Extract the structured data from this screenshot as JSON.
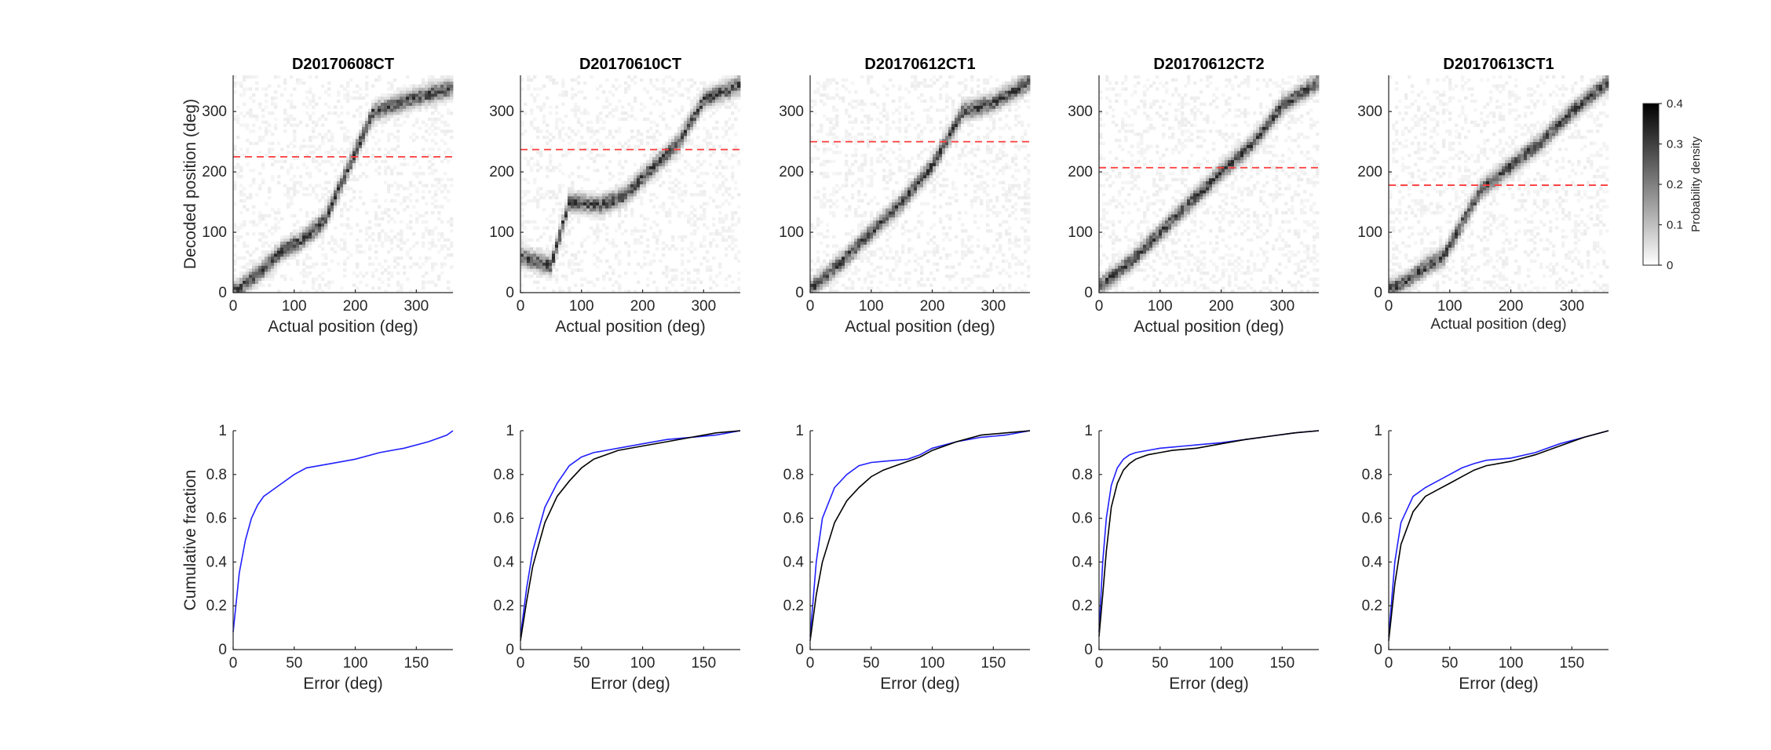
{
  "figure": {
    "colorbar": {
      "label": "Probability density",
      "range": [
        0,
        0.4
      ],
      "ticks": [
        "0",
        "0.1",
        "0.2",
        "0.3",
        "0.4"
      ],
      "colormap": "white-to-black"
    },
    "colors": {
      "threshold_line": "#ff3b3b",
      "decoded_curve": "#2020ff",
      "shuffle_curve": "#000000",
      "axis": "#262626"
    }
  },
  "chart_data": [
    {
      "type": "heatmap",
      "title": "D20170608CT",
      "xlabel": "Actual position (deg)",
      "ylabel": "Decoded position (deg)",
      "xlim": [
        0,
        360
      ],
      "ylim": [
        0,
        360
      ],
      "xticks": [
        "0",
        "100",
        "200",
        "300"
      ],
      "yticks": [
        "0",
        "100",
        "200",
        "300"
      ],
      "threshold_y": 225,
      "ridge": [
        [
          0,
          0
        ],
        [
          40,
          30
        ],
        [
          80,
          70
        ],
        [
          110,
          85
        ],
        [
          150,
          120
        ],
        [
          190,
          210
        ],
        [
          230,
          300
        ],
        [
          290,
          320
        ],
        [
          360,
          340
        ]
      ]
    },
    {
      "type": "heatmap",
      "title": "D20170610CT",
      "xlabel": "Actual position (deg)",
      "ylabel": "",
      "xlim": [
        0,
        360
      ],
      "ylim": [
        0,
        360
      ],
      "xticks": [
        "0",
        "100",
        "200",
        "300"
      ],
      "yticks": [
        "0",
        "100",
        "200",
        "300"
      ],
      "threshold_y": 237,
      "ridge": [
        [
          0,
          60
        ],
        [
          50,
          45
        ],
        [
          80,
          150
        ],
        [
          130,
          145
        ],
        [
          170,
          160
        ],
        [
          220,
          210
        ],
        [
          260,
          250
        ],
        [
          300,
          320
        ],
        [
          360,
          345
        ]
      ]
    },
    {
      "type": "heatmap",
      "title": "D20170612CT1",
      "xlabel": "Actual position (deg)",
      "ylabel": "",
      "xlim": [
        0,
        360
      ],
      "ylim": [
        0,
        360
      ],
      "xticks": [
        "0",
        "100",
        "200",
        "300"
      ],
      "yticks": [
        "0",
        "100",
        "200",
        "300"
      ],
      "threshold_y": 250,
      "ridge": [
        [
          0,
          5
        ],
        [
          50,
          50
        ],
        [
          100,
          100
        ],
        [
          150,
          150
        ],
        [
          200,
          210
        ],
        [
          250,
          300
        ],
        [
          300,
          315
        ],
        [
          360,
          350
        ]
      ]
    },
    {
      "type": "heatmap",
      "title": "D20170612CT2",
      "xlabel": "Actual position (deg)",
      "ylabel": "",
      "xlim": [
        0,
        360
      ],
      "ylim": [
        0,
        360
      ],
      "xticks": [
        "0",
        "100",
        "200",
        "300"
      ],
      "yticks": [
        "0",
        "100",
        "200",
        "300"
      ],
      "threshold_y": 207,
      "ridge": [
        [
          0,
          10
        ],
        [
          50,
          50
        ],
        [
          100,
          100
        ],
        [
          150,
          150
        ],
        [
          200,
          200
        ],
        [
          250,
          245
        ],
        [
          300,
          310
        ],
        [
          360,
          350
        ]
      ]
    },
    {
      "type": "heatmap",
      "title": "D20170613CT1",
      "xlabel": "Actual position (deg)",
      "ylabel": "",
      "xlim": [
        0,
        360
      ],
      "ylim": [
        0,
        360
      ],
      "xticks": [
        "0",
        "100",
        "200",
        "300"
      ],
      "yticks": [
        "0",
        "100",
        "200",
        "300"
      ],
      "threshold_y": 178,
      "ridge": [
        [
          0,
          5
        ],
        [
          30,
          20
        ],
        [
          70,
          50
        ],
        [
          90,
          60
        ],
        [
          150,
          170
        ],
        [
          200,
          210
        ],
        [
          250,
          250
        ],
        [
          300,
          300
        ],
        [
          360,
          350
        ]
      ]
    },
    {
      "type": "line",
      "xlabel": "Error (deg)",
      "ylabel": "Cumulative fraction",
      "xlim": [
        0,
        180
      ],
      "ylim": [
        0,
        1
      ],
      "xticks": [
        "0",
        "50",
        "100",
        "150"
      ],
      "yticks": [
        "0",
        "0.2",
        "0.4",
        "0.6",
        "0.8",
        "1"
      ],
      "series": [
        {
          "color": "#2020ff",
          "x": [
            0,
            5,
            10,
            15,
            20,
            25,
            30,
            40,
            50,
            60,
            80,
            100,
            120,
            140,
            160,
            175,
            180
          ],
          "y": [
            0.08,
            0.35,
            0.5,
            0.6,
            0.66,
            0.7,
            0.72,
            0.76,
            0.8,
            0.83,
            0.85,
            0.87,
            0.9,
            0.92,
            0.95,
            0.98,
            1.0
          ]
        }
      ]
    },
    {
      "type": "line",
      "xlabel": "Error (deg)",
      "ylabel": "",
      "xlim": [
        0,
        180
      ],
      "ylim": [
        0,
        1
      ],
      "xticks": [
        "0",
        "50",
        "100",
        "150"
      ],
      "yticks": [
        "0",
        "0.2",
        "0.4",
        "0.6",
        "0.8",
        "1"
      ],
      "series": [
        {
          "color": "#2020ff",
          "x": [
            0,
            5,
            10,
            20,
            30,
            40,
            50,
            60,
            70,
            80,
            100,
            120,
            140,
            160,
            180
          ],
          "y": [
            0.06,
            0.28,
            0.45,
            0.65,
            0.76,
            0.84,
            0.88,
            0.9,
            0.91,
            0.92,
            0.94,
            0.96,
            0.97,
            0.98,
            1.0
          ]
        },
        {
          "color": "#000000",
          "x": [
            0,
            5,
            10,
            20,
            30,
            40,
            50,
            60,
            70,
            80,
            100,
            120,
            140,
            160,
            180
          ],
          "y": [
            0.04,
            0.22,
            0.38,
            0.58,
            0.7,
            0.77,
            0.83,
            0.87,
            0.89,
            0.91,
            0.93,
            0.95,
            0.97,
            0.99,
            1.0
          ]
        }
      ]
    },
    {
      "type": "line",
      "xlabel": "Error (deg)",
      "ylabel": "",
      "xlim": [
        0,
        180
      ],
      "ylim": [
        0,
        1
      ],
      "xticks": [
        "0",
        "50",
        "100",
        "150"
      ],
      "yticks": [
        "0",
        "0.2",
        "0.4",
        "0.6",
        "0.8",
        "1"
      ],
      "series": [
        {
          "color": "#2020ff",
          "x": [
            0,
            5,
            10,
            20,
            30,
            40,
            50,
            60,
            70,
            80,
            90,
            100,
            120,
            140,
            160,
            180
          ],
          "y": [
            0.06,
            0.4,
            0.6,
            0.74,
            0.8,
            0.84,
            0.855,
            0.86,
            0.865,
            0.87,
            0.89,
            0.92,
            0.95,
            0.97,
            0.98,
            1.0
          ]
        },
        {
          "color": "#000000",
          "x": [
            0,
            5,
            10,
            20,
            30,
            40,
            50,
            60,
            70,
            80,
            90,
            100,
            120,
            140,
            160,
            180
          ],
          "y": [
            0.04,
            0.25,
            0.4,
            0.58,
            0.68,
            0.74,
            0.79,
            0.82,
            0.84,
            0.86,
            0.88,
            0.91,
            0.95,
            0.98,
            0.99,
            1.0
          ]
        }
      ]
    },
    {
      "type": "line",
      "xlabel": "Error (deg)",
      "ylabel": "",
      "xlim": [
        0,
        180
      ],
      "ylim": [
        0,
        1
      ],
      "xticks": [
        "0",
        "50",
        "100",
        "150"
      ],
      "yticks": [
        "0",
        "0.2",
        "0.4",
        "0.6",
        "0.8",
        "1"
      ],
      "series": [
        {
          "color": "#2020ff",
          "x": [
            0,
            3,
            6,
            10,
            15,
            20,
            25,
            30,
            40,
            50,
            60,
            70,
            80,
            100,
            120,
            140,
            160,
            180
          ],
          "y": [
            0.08,
            0.4,
            0.6,
            0.75,
            0.83,
            0.87,
            0.89,
            0.9,
            0.91,
            0.92,
            0.925,
            0.93,
            0.935,
            0.945,
            0.96,
            0.975,
            0.99,
            1.0
          ]
        },
        {
          "color": "#000000",
          "x": [
            0,
            3,
            6,
            10,
            15,
            20,
            25,
            30,
            40,
            50,
            60,
            70,
            80,
            100,
            120,
            140,
            160,
            180
          ],
          "y": [
            0.06,
            0.25,
            0.45,
            0.65,
            0.76,
            0.82,
            0.85,
            0.87,
            0.89,
            0.9,
            0.91,
            0.915,
            0.92,
            0.94,
            0.96,
            0.975,
            0.99,
            1.0
          ]
        }
      ]
    },
    {
      "type": "line",
      "xlabel": "Error (deg)",
      "ylabel": "",
      "xlim": [
        0,
        180
      ],
      "ylim": [
        0,
        1
      ],
      "xticks": [
        "0",
        "50",
        "100",
        "150"
      ],
      "yticks": [
        "0",
        "0.2",
        "0.4",
        "0.6",
        "0.8",
        "1"
      ],
      "series": [
        {
          "color": "#2020ff",
          "x": [
            0,
            5,
            10,
            20,
            30,
            40,
            50,
            60,
            70,
            80,
            100,
            120,
            140,
            160,
            180
          ],
          "y": [
            0.06,
            0.4,
            0.58,
            0.7,
            0.74,
            0.77,
            0.8,
            0.83,
            0.85,
            0.865,
            0.875,
            0.9,
            0.94,
            0.97,
            1.0
          ]
        },
        {
          "color": "#000000",
          "x": [
            0,
            5,
            10,
            20,
            30,
            40,
            50,
            60,
            70,
            80,
            100,
            120,
            140,
            160,
            180
          ],
          "y": [
            0.04,
            0.3,
            0.48,
            0.63,
            0.7,
            0.73,
            0.76,
            0.79,
            0.82,
            0.84,
            0.86,
            0.89,
            0.93,
            0.97,
            1.0
          ]
        }
      ]
    }
  ]
}
